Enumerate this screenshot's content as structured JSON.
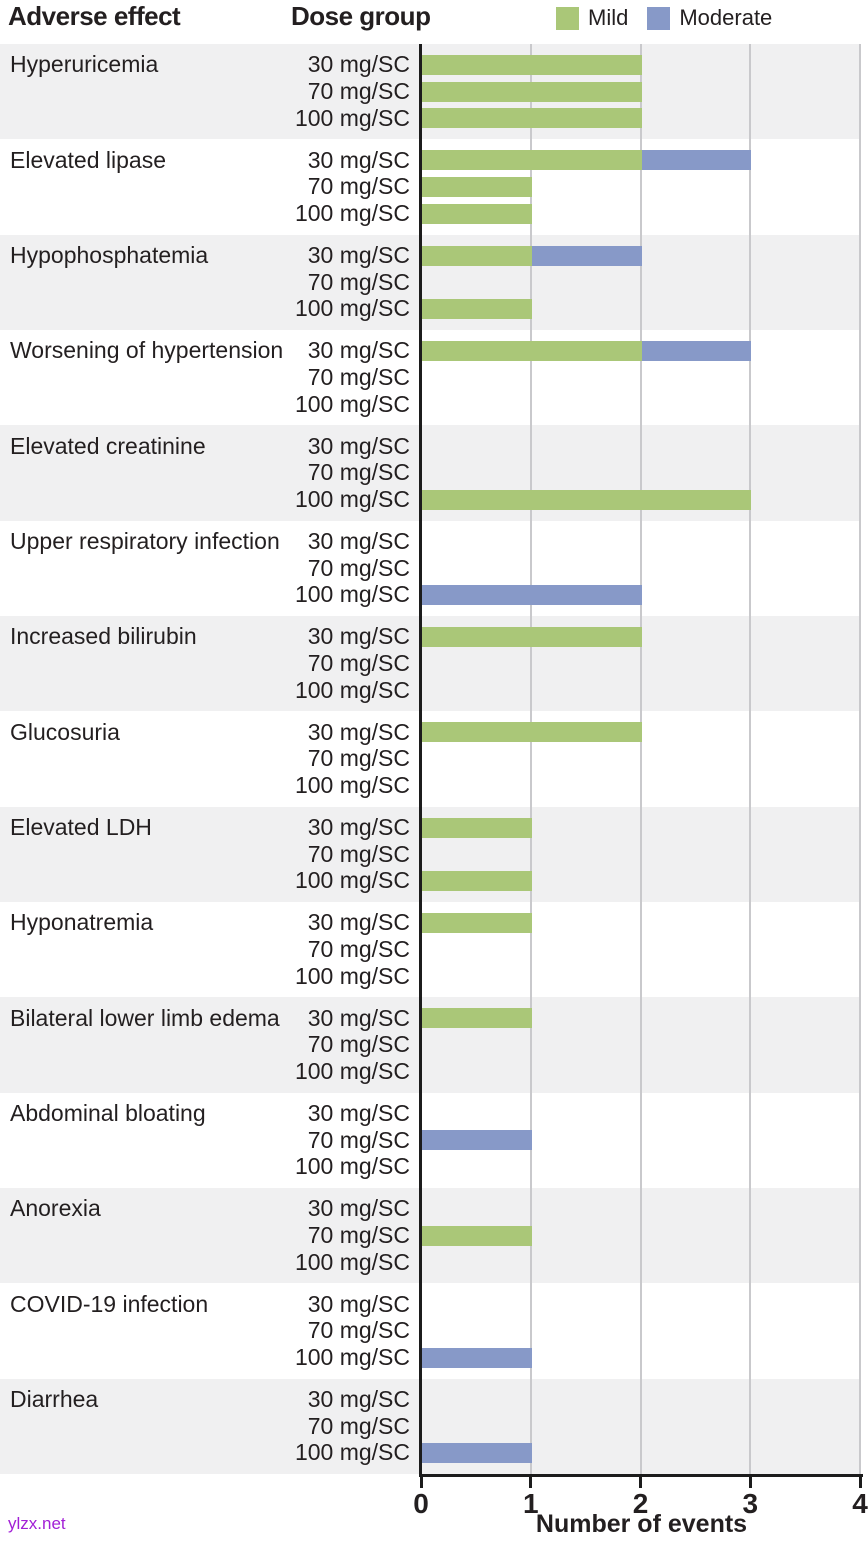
{
  "header": {
    "adverse_effect": "Adverse effect",
    "dose_group": "Dose group"
  },
  "legend": {
    "items": [
      {
        "label": "Mild",
        "color": "#aac778"
      },
      {
        "label": "Moderate",
        "color": "#8799c8"
      }
    ]
  },
  "axis": {
    "title": "Number of events",
    "ticks": [
      "0",
      "1",
      "2",
      "3",
      "4"
    ]
  },
  "watermark": "ylzx.net",
  "colors": {
    "mild": "#aac778",
    "moderate": "#8799c8",
    "stripe": "#f0f0f1",
    "gridline": "#c9c9cc",
    "axis": "#1c1c1c",
    "text": "#231f20",
    "watermark": "#a21fd6"
  },
  "chart_data": {
    "type": "bar",
    "orientation": "horizontal",
    "stacked": true,
    "title": "",
    "xlabel": "Number of events",
    "ylabel": "Adverse effect / Dose group",
    "xlim": [
      0,
      4
    ],
    "x_ticks": [
      0,
      1,
      2,
      3,
      4
    ],
    "grid": true,
    "legend_entries": [
      "Mild",
      "Moderate"
    ],
    "legend_position": "top-right",
    "series_names": [
      "Mild",
      "Moderate"
    ],
    "doses": [
      "30 mg/SC",
      "70 mg/SC",
      "100 mg/SC"
    ],
    "values_format": "[mild, moderate] per dose row",
    "groups": [
      {
        "effect": "Hyperuricemia",
        "values": [
          [
            2,
            0
          ],
          [
            2,
            0
          ],
          [
            2,
            0
          ]
        ]
      },
      {
        "effect": "Elevated lipase",
        "values": [
          [
            2,
            1
          ],
          [
            1,
            0
          ],
          [
            1,
            0
          ]
        ]
      },
      {
        "effect": "Hypophosphatemia",
        "values": [
          [
            1,
            1
          ],
          [
            0,
            0
          ],
          [
            1,
            0
          ]
        ]
      },
      {
        "effect": "Worsening of hypertension",
        "values": [
          [
            2,
            1
          ],
          [
            0,
            0
          ],
          [
            0,
            0
          ]
        ]
      },
      {
        "effect": "Elevated creatinine",
        "values": [
          [
            0,
            0
          ],
          [
            0,
            0
          ],
          [
            3,
            0
          ]
        ]
      },
      {
        "effect": "Upper respiratory infection",
        "values": [
          [
            0,
            0
          ],
          [
            0,
            0
          ],
          [
            0,
            2
          ]
        ]
      },
      {
        "effect": "Increased bilirubin",
        "values": [
          [
            2,
            0
          ],
          [
            0,
            0
          ],
          [
            0,
            0
          ]
        ]
      },
      {
        "effect": "Glucosuria",
        "values": [
          [
            2,
            0
          ],
          [
            0,
            0
          ],
          [
            0,
            0
          ]
        ]
      },
      {
        "effect": "Elevated LDH",
        "values": [
          [
            1,
            0
          ],
          [
            0,
            0
          ],
          [
            1,
            0
          ]
        ]
      },
      {
        "effect": "Hyponatremia",
        "values": [
          [
            1,
            0
          ],
          [
            0,
            0
          ],
          [
            0,
            0
          ]
        ]
      },
      {
        "effect": "Bilateral lower limb edema",
        "values": [
          [
            1,
            0
          ],
          [
            0,
            0
          ],
          [
            0,
            0
          ]
        ]
      },
      {
        "effect": "Abdominal bloating",
        "values": [
          [
            0,
            0
          ],
          [
            0,
            1
          ],
          [
            0,
            0
          ]
        ]
      },
      {
        "effect": "Anorexia",
        "values": [
          [
            0,
            0
          ],
          [
            1,
            0
          ],
          [
            0,
            0
          ]
        ]
      },
      {
        "effect": "COVID-19 infection",
        "values": [
          [
            0,
            0
          ],
          [
            0,
            0
          ],
          [
            0,
            1
          ]
        ]
      },
      {
        "effect": "Diarrhea",
        "values": [
          [
            0,
            0
          ],
          [
            0,
            0
          ],
          [
            0,
            1
          ]
        ]
      }
    ]
  }
}
